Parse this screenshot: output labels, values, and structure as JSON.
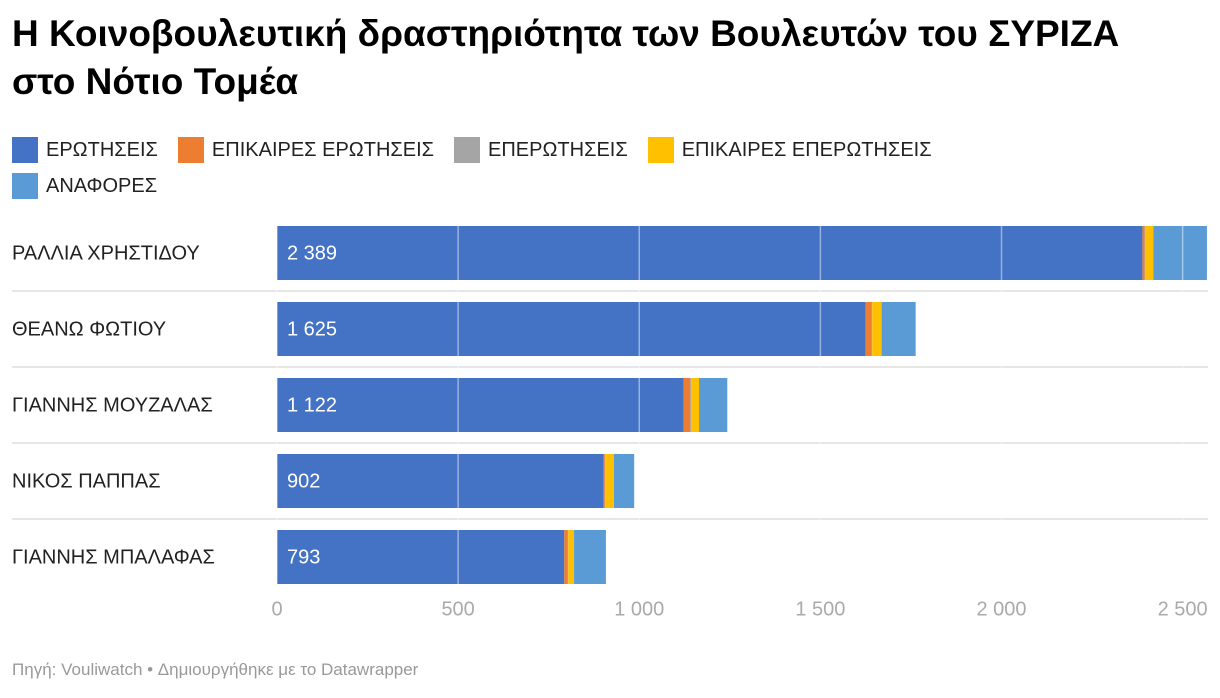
{
  "chart_data": {
    "type": "stacked-bar-horizontal",
    "title": "Η Κοινοβουλευτική δραστηριότητα των Βουλευτών του ΣΥΡΙΖΑ στο Νότιο Τομέα",
    "categories": [
      "ΡΑΛΛΙΑ ΧΡΗΣΤΙΔΟΥ",
      "ΘΕΑΝΩ ΦΩΤΙΟΥ",
      "ΓΙΑΝΝΗΣ ΜΟΥΖΑΛΑΣ",
      "ΝΙΚΟΣ ΠΑΠΠΑΣ",
      "ΓΙΑΝΝΗΣ ΜΠΑΛΑΦΑΣ"
    ],
    "series": [
      {
        "name": "ΕΡΩΤΗΣΕΙΣ",
        "color": "#4472c4",
        "values": [
          2389,
          1625,
          1122,
          902,
          793
        ],
        "value_labels": [
          "2 389",
          "1 625",
          "1 122",
          "902",
          "793"
        ]
      },
      {
        "name": "ΕΠΙΚΑΙΡΕΣ ΕΡΩΤΗΣΕΙΣ",
        "color": "#ed7d31",
        "values": [
          6,
          16,
          19,
          3,
          10
        ]
      },
      {
        "name": "ΕΠΕΡΩΤΗΣΕΙΣ",
        "color": "#a5a5a5",
        "values": [
          2,
          2,
          2,
          1,
          1
        ]
      },
      {
        "name": "ΕΠΙΚΑΙΡΕΣ ΕΠΕΡΩΤΗΣΕΙΣ",
        "color": "#ffc000",
        "values": [
          22,
          26,
          22,
          24,
          16
        ]
      },
      {
        "name": "ΑΝΑΦΟΡΕΣ",
        "color": "#5b9bd5",
        "values": [
          148,
          94,
          78,
          56,
          88
        ]
      }
    ],
    "xlim": [
      0,
      2570
    ],
    "xticks": [
      0,
      500,
      {
        "value": 1000,
        "label": "1 000"
      },
      {
        "value": 1500,
        "label": "1 500"
      },
      {
        "value": 2000,
        "label": "2 000"
      },
      {
        "value": 2500,
        "label": "2 500"
      }
    ],
    "grid": true,
    "footer": "Πηγή: Vouliwatch • Δημιουργήθηκε με το Datawrapper"
  }
}
